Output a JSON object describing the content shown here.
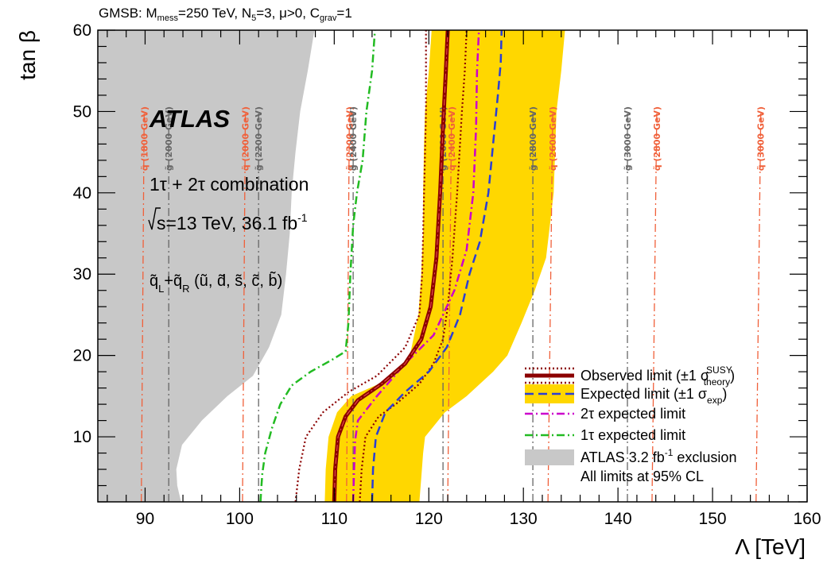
{
  "chart_data": {
    "type": "line",
    "title": "GMSB: Mₘₑₛₛ=250 TeV, N₅=3, μ>0, Cᵍʳᵃᵛ=1",
    "title_parts": {
      "prefix": "GMSB: M",
      "mess_sub": "mess",
      "mid1": "=250 TeV, N",
      "n5_sub": "5",
      "mid2": "=3, μ>0, C",
      "grav_sub": "grav",
      "suffix": "=1"
    },
    "xlabel": "Λ [TeV]",
    "ylabel": "tan β",
    "xlim": [
      85,
      160
    ],
    "ylim": [
      2,
      60
    ],
    "xticks": [
      90,
      100,
      110,
      120,
      130,
      140,
      150,
      160
    ],
    "yticks": [
      10,
      20,
      30,
      40,
      50,
      60
    ],
    "grid": false,
    "legend_position": "bottom-right",
    "annotations": {
      "atlas": "ATLAS",
      "combination": "1τ + 2τ combination",
      "energy_prefix": "s=13 TeV, 36.1 fb",
      "energy_exp": "-1",
      "squarks": "q̃",
      "squark_L": "L",
      "squark_R": "R",
      "squark_plus": "+",
      "squark_list": "(ũ, d̃, s̃, c̃, b̃)"
    },
    "legend": [
      {
        "label_main": "Observed limit (±1 σ",
        "sup": "SUSY",
        "sub": "theory",
        "label_end": ")",
        "style": "observed"
      },
      {
        "label_main": "Expected limit (±1 σ",
        "sub": "exp",
        "label_end": ")",
        "style": "expected"
      },
      {
        "label_main": "2τ expected limit",
        "style": "exp2tau"
      },
      {
        "label_main": "1τ expected limit",
        "style": "exp1tau"
      },
      {
        "label_main": "ATLAS 3.2 fb",
        "sup": "-1",
        "label_end": " exclusion",
        "style": "prev"
      },
      {
        "label_main": "All limits at 95% CL",
        "style": "none"
      }
    ],
    "colors": {
      "observed": "#8b0000",
      "band": "#ffd700",
      "expected": "#2a3ed6",
      "exp2tau": "#cc00cc",
      "exp1tau": "#22bb22",
      "prev": "#c8c8c8",
      "squark_contour": "#f0603a",
      "gluino_contour": "#666666"
    },
    "series": [
      {
        "name": "Observed limit",
        "points": [
          [
            110,
            2
          ],
          [
            110.1,
            6
          ],
          [
            110.4,
            10
          ],
          [
            111.2,
            12.5
          ],
          [
            112.5,
            14.5
          ],
          [
            115,
            16.5
          ],
          [
            117.5,
            19
          ],
          [
            119.2,
            22
          ],
          [
            120.2,
            26
          ],
          [
            120.8,
            32
          ],
          [
            121.2,
            40
          ],
          [
            121.5,
            48
          ],
          [
            121.8,
            55
          ],
          [
            122,
            60
          ]
        ]
      },
      {
        "name": "Observed +1σ theory",
        "points": [
          [
            105.9,
            2
          ],
          [
            106.3,
            6
          ],
          [
            107,
            10
          ],
          [
            108.8,
            13
          ],
          [
            111.5,
            15.5
          ],
          [
            114.5,
            17.5
          ],
          [
            117.5,
            21
          ],
          [
            119,
            25
          ],
          [
            119.3,
            30
          ],
          [
            119.5,
            40
          ],
          [
            119.7,
            50
          ],
          [
            119.7,
            56
          ],
          [
            119.7,
            60
          ]
        ]
      },
      {
        "name": "Observed -1σ theory",
        "points": [
          [
            112.7,
            2
          ],
          [
            112.9,
            6
          ],
          [
            113.3,
            10
          ],
          [
            114.7,
            12.5
          ],
          [
            116.5,
            14
          ],
          [
            119,
            16.5
          ],
          [
            120.5,
            19
          ],
          [
            121.5,
            22
          ],
          [
            122,
            26
          ],
          [
            122.5,
            32
          ],
          [
            123,
            40
          ],
          [
            123.5,
            50
          ],
          [
            123.8,
            55
          ],
          [
            124,
            60
          ]
        ]
      },
      {
        "name": "Expected limit",
        "points": [
          [
            114,
            2
          ],
          [
            114.1,
            6
          ],
          [
            114.4,
            10
          ],
          [
            115.4,
            13
          ],
          [
            117.5,
            15.5
          ],
          [
            120,
            18
          ],
          [
            121.9,
            21
          ],
          [
            123.3,
            25
          ],
          [
            124.3,
            30
          ],
          [
            125.4,
            34
          ],
          [
            126.3,
            40
          ],
          [
            126.8,
            46
          ],
          [
            127.3,
            52
          ],
          [
            127.6,
            56
          ],
          [
            127.7,
            60
          ]
        ]
      },
      {
        "name": "Expected band upper",
        "points": [
          [
            119,
            2
          ],
          [
            119.2,
            5
          ],
          [
            119.4,
            8
          ],
          [
            119.6,
            10
          ],
          [
            121.7,
            13
          ],
          [
            124,
            15
          ],
          [
            126.8,
            18
          ],
          [
            128.3,
            20
          ],
          [
            129.8,
            24
          ],
          [
            131.2,
            28
          ],
          [
            132.4,
            32
          ],
          [
            133.2,
            40
          ],
          [
            133.5,
            50
          ],
          [
            134,
            55
          ],
          [
            134.4,
            60
          ]
        ]
      },
      {
        "name": "Expected band lower",
        "points": [
          [
            109,
            2
          ],
          [
            109.1,
            6
          ],
          [
            109.4,
            10
          ],
          [
            110.3,
            13
          ],
          [
            111.8,
            15
          ],
          [
            115.7,
            17
          ],
          [
            118,
            20
          ],
          [
            118.9,
            25
          ],
          [
            119.2,
            30
          ],
          [
            119.4,
            35
          ],
          [
            119.4,
            40
          ],
          [
            119.5,
            46
          ],
          [
            119.6,
            50
          ],
          [
            120,
            55
          ],
          [
            120.3,
            60
          ]
        ]
      },
      {
        "name": "2τ expected limit",
        "points": [
          [
            112,
            2
          ],
          [
            112.1,
            6
          ],
          [
            112.2,
            9.5
          ],
          [
            112.5,
            12
          ],
          [
            114.5,
            15
          ],
          [
            117.5,
            19
          ],
          [
            120.5,
            22.5
          ],
          [
            122.7,
            28
          ],
          [
            124,
            33
          ],
          [
            124.7,
            40
          ],
          [
            125,
            48
          ],
          [
            125.1,
            55
          ],
          [
            125.3,
            60
          ]
        ]
      },
      {
        "name": "1τ expected limit",
        "points": [
          [
            102.2,
            2
          ],
          [
            102.3,
            4
          ],
          [
            102.4,
            5.5
          ],
          [
            102.7,
            8
          ],
          [
            103.4,
            11
          ],
          [
            104.3,
            14
          ],
          [
            105.5,
            16.3
          ],
          [
            107.5,
            18
          ],
          [
            109.8,
            19.5
          ],
          [
            111.2,
            20.5
          ],
          [
            111.5,
            24
          ],
          [
            111.7,
            30
          ],
          [
            112,
            36
          ],
          [
            112.4,
            40
          ],
          [
            113,
            44
          ],
          [
            113.4,
            50
          ],
          [
            114,
            55
          ],
          [
            114.3,
            60
          ]
        ]
      },
      {
        "name": "ATLAS 3.2 fb⁻¹ exclusion",
        "points": [
          [
            85,
            2
          ],
          [
            93.8,
            2
          ],
          [
            93.4,
            4
          ],
          [
            93.3,
            6
          ],
          [
            93.9,
            9
          ],
          [
            96,
            12
          ],
          [
            98.7,
            15
          ],
          [
            101.4,
            17.5
          ],
          [
            103.1,
            21
          ],
          [
            104.4,
            25
          ],
          [
            104.9,
            30
          ],
          [
            105.3,
            35
          ],
          [
            105.5,
            40
          ],
          [
            105.9,
            45
          ],
          [
            106.4,
            50
          ],
          [
            107.2,
            55
          ],
          [
            107.9,
            60
          ],
          [
            85,
            60
          ]
        ]
      }
    ],
    "contours": [
      {
        "label": "q̃ (1800 GeV)",
        "type": "squark",
        "x": [
          89.6,
          89.9
        ]
      },
      {
        "label": "g̃ (2000 GeV)",
        "type": "gluino",
        "x": [
          92.5,
          92.5
        ]
      },
      {
        "label": "q̃ (2000 GeV)",
        "type": "squark",
        "x": [
          100.3,
          100.6
        ]
      },
      {
        "label": "g̃ (2200 GeV)",
        "type": "gluino",
        "x": [
          102,
          102
        ]
      },
      {
        "label": "q̃ (2200 GeV)",
        "type": "squark",
        "x": [
          111.3,
          111.6
        ]
      },
      {
        "label": "g̃ (2400 GeV)",
        "type": "gluino",
        "x": [
          112,
          112
        ]
      },
      {
        "label": "g̃ (2600 GeV)",
        "type": "gluino",
        "x": [
          121.5,
          121.5
        ]
      },
      {
        "label": "q̃ (2400 GeV)",
        "type": "squark",
        "x": [
          122,
          122.4
        ]
      },
      {
        "label": "g̃ (2800 GeV)",
        "type": "gluino",
        "x": [
          131,
          131
        ]
      },
      {
        "label": "q̃ (2600 GeV)",
        "type": "squark",
        "x": [
          132.6,
          133.1
        ]
      },
      {
        "label": "g̃ (3000 GeV)",
        "type": "gluino",
        "x": [
          141,
          141
        ]
      },
      {
        "label": "q̃ (2800 GeV)",
        "type": "squark",
        "x": [
          143.6,
          144.1
        ]
      },
      {
        "label": "q̃ (3000 GeV)",
        "type": "squark",
        "x": [
          154.6,
          155.1
        ]
      }
    ]
  }
}
